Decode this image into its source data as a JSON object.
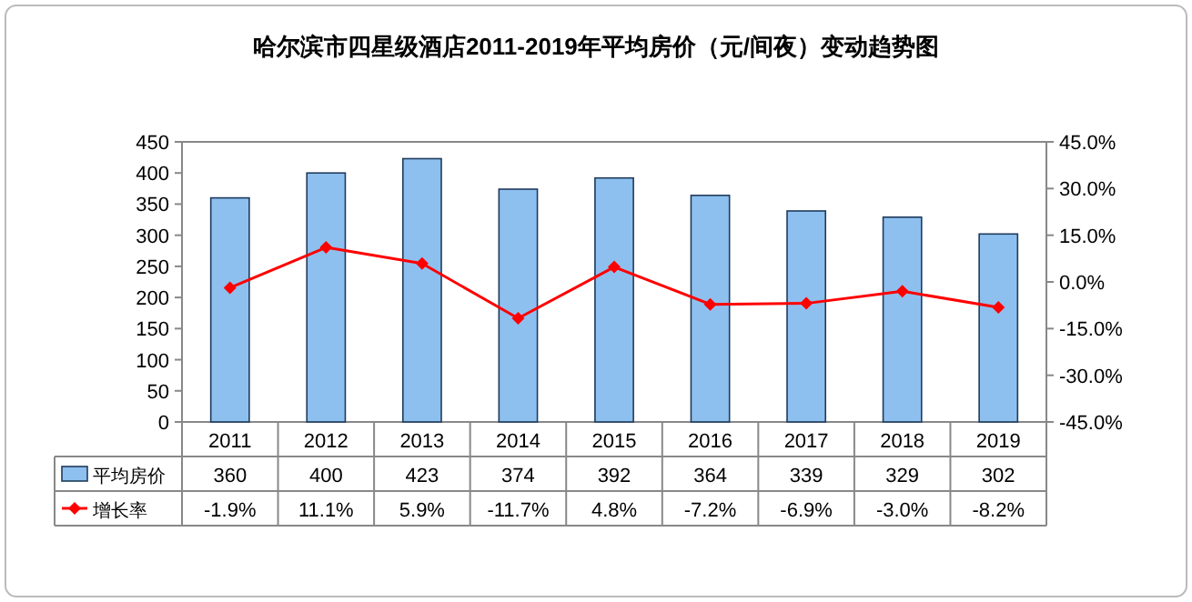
{
  "chart_data": {
    "type": "bar",
    "title": "哈尔滨市四星级酒店2011-2019年平均房价（元/间夜）变动趋势图",
    "categories": [
      "2011",
      "2012",
      "2013",
      "2014",
      "2015",
      "2016",
      "2017",
      "2018",
      "2019"
    ],
    "series": [
      {
        "name": "平均房价",
        "color": "#8ec0ef",
        "values": [
          360,
          400,
          423,
          374,
          392,
          364,
          339,
          329,
          302
        ],
        "value_labels": [
          "360",
          "400",
          "423",
          "374",
          "392",
          "364",
          "339",
          "329",
          "302"
        ]
      },
      {
        "name": "增长率",
        "type": "line",
        "axis": "y2",
        "color": "#ff0000",
        "marker": "diamond",
        "values": [
          -1.9,
          11.1,
          5.9,
          -11.7,
          4.8,
          -7.2,
          -6.9,
          -3.0,
          -8.2
        ],
        "value_labels": [
          "-1.9%",
          "11.1%",
          "5.9%",
          "-11.7%",
          "4.8%",
          "-7.2%",
          "-6.9%",
          "-3.0%",
          "-8.2%"
        ]
      }
    ],
    "ylim": [
      0,
      450
    ],
    "yticks": [
      0,
      50,
      100,
      150,
      200,
      250,
      300,
      350,
      400,
      450
    ],
    "y2lim": [
      -45,
      45
    ],
    "y2ticks": [
      {
        "value": -45,
        "label": "-45.0%"
      },
      {
        "value": -30,
        "label": "-30.0%"
      },
      {
        "value": -15,
        "label": "-15.0%"
      },
      {
        "value": 0,
        "label": "0.0%"
      },
      {
        "value": 15,
        "label": "15.0%"
      },
      {
        "value": 30,
        "label": "30.0%"
      },
      {
        "value": 45,
        "label": "45.0%"
      }
    ],
    "legend": "bottom"
  }
}
